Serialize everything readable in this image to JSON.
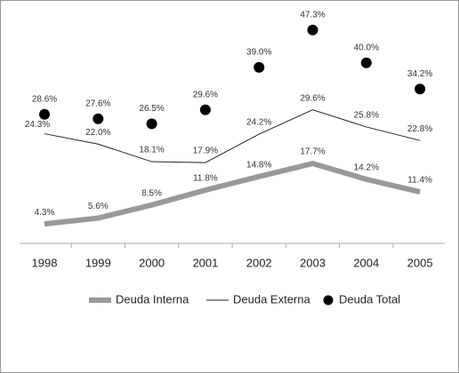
{
  "chart_data": {
    "type": "line",
    "categories": [
      "1998",
      "1999",
      "2000",
      "2001",
      "2002",
      "2003",
      "2004",
      "2005"
    ],
    "ylim": [
      0,
      50
    ],
    "series": [
      {
        "name": "Deuda Interna",
        "color": "#999999",
        "style": "thick-line",
        "values": [
          4.3,
          5.6,
          8.5,
          11.8,
          14.8,
          17.7,
          14.2,
          11.4
        ],
        "value_labels": [
          "4.3%",
          "5.6%",
          "8.5%",
          "11.8%",
          "14.8%",
          "17.7%",
          "14.2%",
          "11.4%"
        ]
      },
      {
        "name": "Deuda Externa",
        "color": "#222222",
        "style": "thin-line",
        "values": [
          24.3,
          22.0,
          18.1,
          17.9,
          24.2,
          29.6,
          25.8,
          22.8
        ],
        "value_labels": [
          "24.3%",
          "22.0%",
          "18.1%",
          "17.9%",
          "24.2%",
          "29.6%",
          "25.8%",
          "22.8%"
        ]
      },
      {
        "name": "Deuda Total",
        "color": "#000000",
        "style": "dots",
        "values": [
          28.6,
          27.6,
          26.5,
          29.6,
          39.0,
          47.3,
          40.0,
          34.2
        ],
        "value_labels": [
          "28.6%",
          "27.6%",
          "26.5%",
          "29.6%",
          "39.0%",
          "47.3%",
          "40.0%",
          "34.2%"
        ]
      }
    ]
  }
}
